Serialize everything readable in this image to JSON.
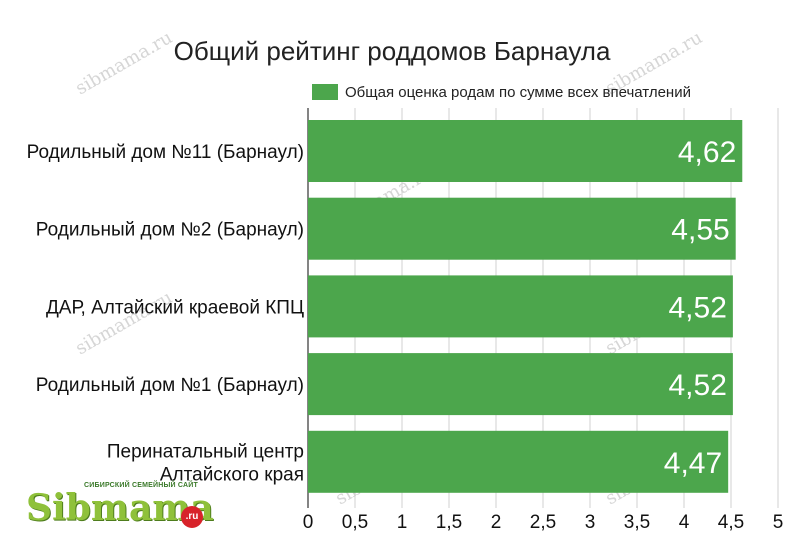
{
  "chart_data": {
    "type": "bar",
    "orientation": "horizontal",
    "title": "Общий рейтинг роддомов Барнаула",
    "legend": "top-right",
    "series": [
      {
        "name": "Общая оценка родам по сумме всех впечатлений",
        "color": "#4ca64c",
        "values": [
          4.62,
          4.55,
          4.52,
          4.52,
          4.47
        ],
        "labels": [
          "4,62",
          "4,55",
          "4,52",
          "4,52",
          "4,47"
        ]
      }
    ],
    "categories": [
      [
        "Родильный дом №11 (Барнаул)"
      ],
      [
        "Родильный дом №2 (Барнаул)"
      ],
      [
        "ДАР, Алтайский краевой КПЦ"
      ],
      [
        "Родильный дом №1 (Барнаул)"
      ],
      [
        "Перинатальный центр",
        "Алтайского края"
      ]
    ],
    "xlim": [
      0,
      5
    ],
    "xticks": [
      0,
      0.5,
      1,
      1.5,
      2,
      2.5,
      3,
      3.5,
      4,
      4.5,
      5
    ],
    "xtick_labels": [
      "0",
      "0,5",
      "1",
      "1,5",
      "2",
      "2,5",
      "3",
      "3,5",
      "4",
      "4,5",
      "5"
    ],
    "grid": true
  },
  "watermark": "sibmama.ru",
  "logo": {
    "tagline": "СИБИРСКИЙ СЕМЕЙНЫЙ САЙТ",
    "word": "Sibmama",
    "suffix": ".ru"
  }
}
